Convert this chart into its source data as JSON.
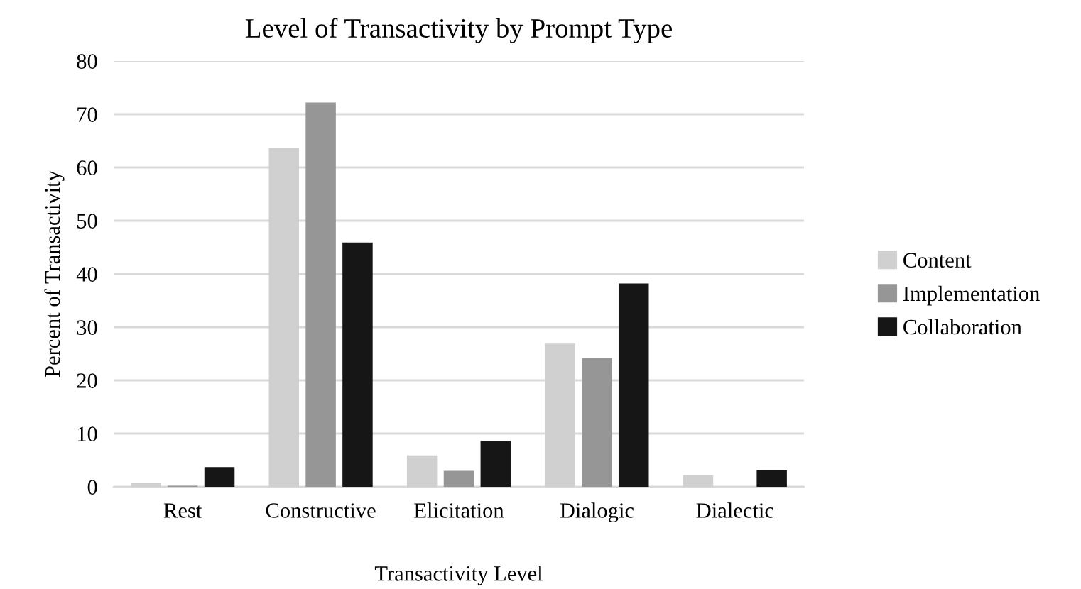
{
  "chart_data": {
    "type": "bar",
    "title": "Level of Transactivity by Prompt Type",
    "xlabel": "Transactivity Level",
    "ylabel": "Percent of Transactivity",
    "categories": [
      "Rest",
      "Constructive",
      "Elicitation",
      "Dialogic",
      "Dialectic"
    ],
    "series": [
      {
        "name": "Content",
        "color": "#d0d0d0",
        "values": [
          0.8,
          63.7,
          5.9,
          26.9,
          2.2
        ]
      },
      {
        "name": "Implementation",
        "color": "#969696",
        "values": [
          0.2,
          72.2,
          3.0,
          24.2,
          0
        ]
      },
      {
        "name": "Collaboration",
        "color": "#161616",
        "values": [
          3.7,
          45.9,
          8.6,
          38.2,
          3.1
        ]
      }
    ],
    "ylim": [
      0,
      80
    ],
    "yticks": [
      0,
      10,
      20,
      30,
      40,
      50,
      60,
      70,
      80
    ],
    "grid": "y",
    "legend": "right"
  }
}
